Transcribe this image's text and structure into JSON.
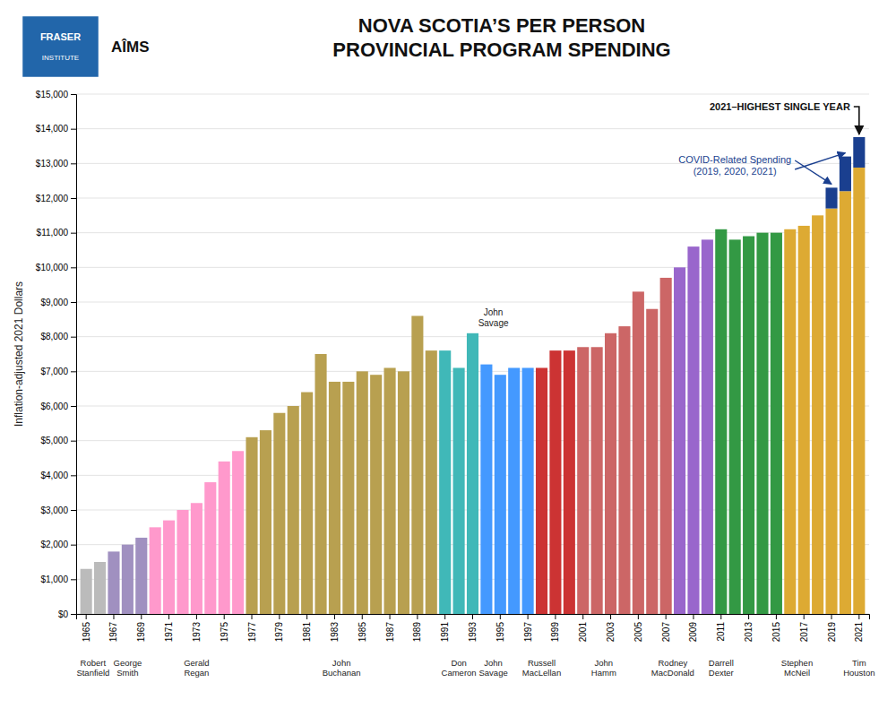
{
  "chart_data": {
    "type": "bar",
    "title": "NOVA SCOTIA’S PER PERSON\nPROVINCIAL PROGRAM SPENDING",
    "ylabel": "Inflation-adjusted 2021 Dollars",
    "categories": [
      "1965",
      null,
      "1967",
      null,
      "1969",
      null,
      "1971",
      null,
      "1973",
      null,
      "1975",
      null,
      "1977",
      null,
      "1979",
      null,
      "1981",
      null,
      "1983",
      null,
      "1985",
      null,
      "1987",
      null,
      "1989",
      null,
      "1991",
      null,
      "1993",
      null,
      "1995",
      null,
      "1997",
      null,
      "1999",
      null,
      "2001",
      null,
      "2003",
      null,
      "2005",
      null,
      "2007",
      null,
      "2009",
      null,
      "2011",
      null,
      "2013",
      null,
      "2015",
      null,
      "2017",
      null,
      "2019",
      null,
      "2021"
    ],
    "series": [
      {
        "values": [
          1300,
          1500,
          1800,
          2000,
          2200,
          2500,
          2700,
          3000,
          3200,
          3800,
          4400,
          4700,
          5100,
          5300,
          5800,
          6000,
          6400,
          7500,
          6700,
          6700,
          7000,
          6900,
          7100,
          7000,
          8600,
          7600,
          7600,
          7100,
          8100,
          7200,
          6900,
          7100,
          7100,
          7100,
          7600,
          7600,
          7700,
          7700,
          8100,
          8300,
          9300,
          8800,
          9700,
          10000,
          10600,
          10800,
          11100,
          10800,
          10900,
          11000,
          11000,
          11100,
          11200,
          11500,
          11700,
          12200,
          12880
        ],
        "colors": [
          "#bbbbbb",
          "#bbbbbb",
          "#a090c0",
          "#a090c0",
          "#a090c0",
          "#ff99cc",
          "#ff99cc",
          "#ff99cc",
          "#ff99cc",
          "#ff99cc",
          "#ff99cc",
          "#ff99cc",
          "#b8a050",
          "#b8a050",
          "#b8a050",
          "#b8a050",
          "#b8a050",
          "#b8a050",
          "#b8a050",
          "#b8a050",
          "#b8a050",
          "#b8a050",
          "#b8a050",
          "#b8a050",
          "#b8a050",
          "#b8a050",
          "#40b8b8",
          "#40b8b8",
          "#40b8b8",
          "#4499ff",
          "#4499ff",
          "#4499ff",
          "#4499ff",
          "#cc3333",
          "#cc3333",
          "#cc3333",
          "#cc6666",
          "#cc6666",
          "#cc6666",
          "#cc6666",
          "#cc6666",
          "#cc6666",
          "#cc6666",
          "#9966cc",
          "#9966cc",
          "#9966cc",
          "#339944",
          "#339944",
          "#339944",
          "#339944",
          "#339944",
          "#ddaa33",
          "#ddaa33",
          "#ddaa33",
          "#ddaa33",
          "#ddaa33",
          "#ddaa33"
        ]
      },
      {
        "values": [
          null,
          null,
          null,
          null,
          null,
          null,
          null,
          null,
          null,
          null,
          null,
          null,
          null,
          null,
          null,
          null,
          null,
          null,
          null,
          null,
          null,
          null,
          null,
          null,
          null,
          null,
          null,
          null,
          null,
          null,
          null,
          null,
          null,
          null,
          null,
          null,
          null,
          null,
          null,
          null,
          null,
          null,
          null,
          null,
          null,
          null,
          null,
          null,
          null,
          null,
          null,
          null,
          null,
          null,
          600,
          1000,
          880
        ],
        "color": "#1a3f8f"
      }
    ],
    "stacked": true,
    "ylim": [
      0,
      15000
    ],
    "yticks": [
      {
        "value": 0,
        "label": "$0"
      },
      {
        "value": 1000,
        "label": "$1,000"
      },
      {
        "value": 2000,
        "label": "$2,000"
      },
      {
        "value": 3000,
        "label": "$3,000"
      },
      {
        "value": 4000,
        "label": "$4,000"
      },
      {
        "value": 5000,
        "label": "$5,000"
      },
      {
        "value": 6000,
        "label": "$6,000"
      },
      {
        "value": 7000,
        "label": "$7,000"
      },
      {
        "value": 8000,
        "label": "$8,000"
      },
      {
        "value": 9000,
        "label": "$9,000"
      },
      {
        "value": 10000,
        "label": "$10,000"
      },
      {
        "value": 11000,
        "label": "$11,000"
      },
      {
        "value": 12000,
        "label": "$12,000"
      },
      {
        "value": 13000,
        "label": "$13,000"
      },
      {
        "value": 14000,
        "label": "$14,000"
      },
      {
        "value": 15000,
        "label": "$15,000"
      }
    ],
    "grid": true,
    "annotations": [
      {
        "text": "2021–HIGHEST SINGLE YEAR"
      },
      {
        "text": "COVID-Related Spending\n(2019, 2020, 2021)"
      },
      {
        "text": "John\nSavage"
      }
    ],
    "premiers": [
      {
        "name": "Robert\nStanfield",
        "start": 1965,
        "end": 1966
      },
      {
        "name": "George\nSmith",
        "start": 1967,
        "end": 1969
      },
      {
        "name": "Gerald\nRegan",
        "start": 1970,
        "end": 1976
      },
      {
        "name": "John\nBuchanan",
        "start": 1977,
        "end": 1990
      },
      {
        "name": "Don\nCameron",
        "start": 1991,
        "end": 1993
      },
      {
        "name": "John\nSavage",
        "start": 1993,
        "end": 1996
      },
      {
        "name": "Russell\nMacLellan",
        "start": 1997,
        "end": 1999
      },
      {
        "name": "John\nHamm",
        "start": 1999,
        "end": 2006
      },
      {
        "name": "Rodney\nMacDonald",
        "start": 2006,
        "end": 2009
      },
      {
        "name": "Darrell\nDexter",
        "start": 2009,
        "end": 2013
      },
      {
        "name": "Stephen\nMcNeil",
        "start": 2013,
        "end": 2020
      },
      {
        "name": "Tim\nHouston",
        "start": 2021,
        "end": 2021
      }
    ],
    "logos": [
      {
        "lines": [
          "FRASER",
          "INSTITUTE"
        ],
        "color": "#2266aa"
      },
      {
        "lines": [
          "AÎMS"
        ]
      }
    ]
  }
}
